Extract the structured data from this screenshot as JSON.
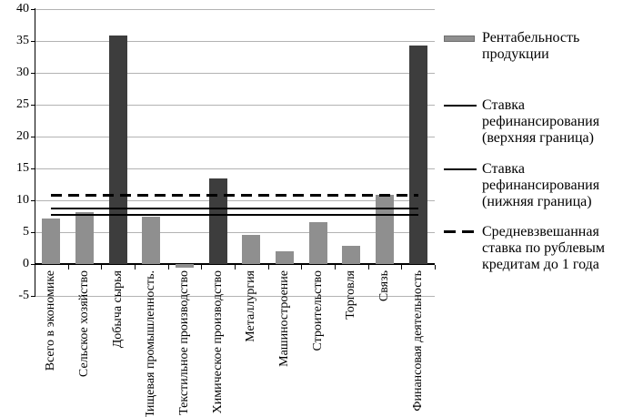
{
  "chart_data": {
    "type": "bar",
    "title": "",
    "categories": [
      "Всего в экономике",
      "Сельское хозяйство",
      "Добыча сырья",
      "Пищевая промышленность.",
      "Текстильное производство",
      "Химическое производство",
      "Металлургия",
      "Машиностроение",
      "Строительство",
      "Торговля",
      "Связь",
      "Финансовая деятельность"
    ],
    "series": [
      {
        "name": "Рентабельность продукции",
        "values": [
          7.1,
          8.2,
          35.8,
          7.5,
          -0.5,
          13.4,
          4.6,
          2.0,
          6.6,
          2.8,
          10.8,
          34.3
        ]
      }
    ],
    "dark_bar_indices": [
      2,
      5,
      11
    ],
    "ref_lines": [
      {
        "name": "Ставка рефинансирования (верхняя граница)",
        "value": 8.75,
        "style": "solid"
      },
      {
        "name": "Ставка рефинансирования (нижняя граница)",
        "value": 7.75,
        "style": "solid"
      },
      {
        "name": "Средневзвешанная ставка по рублевым кредитам до 1 года",
        "value": 10.8,
        "style": "dashed"
      }
    ],
    "ylim": [
      -5,
      40
    ],
    "yticks": [
      40,
      35,
      30,
      25,
      20,
      15,
      10,
      5,
      0,
      -5
    ],
    "grid": true,
    "legend_position": "right",
    "xlabel": "",
    "ylabel": ""
  },
  "legend": {
    "items": [
      {
        "label": "Рентабельность продукции",
        "swatch": "bar"
      },
      {
        "label": "Ставка рефинансирования (верхняя граница)",
        "swatch": "solid-line"
      },
      {
        "label": "Ставка рефинансирования (нижняя граница)",
        "swatch": "solid-line"
      },
      {
        "label": "Средневзвешанная ставка по рублевым кредитам до 1 года",
        "swatch": "dashed-line"
      }
    ]
  },
  "colors": {
    "bar_gray": "#8f8f8f",
    "bar_dark": "#3d3d3d",
    "gridline": "#b3b3b3",
    "axis": "#000000",
    "ref_line": "#000000",
    "background": "#ffffff",
    "text": "#000000"
  }
}
